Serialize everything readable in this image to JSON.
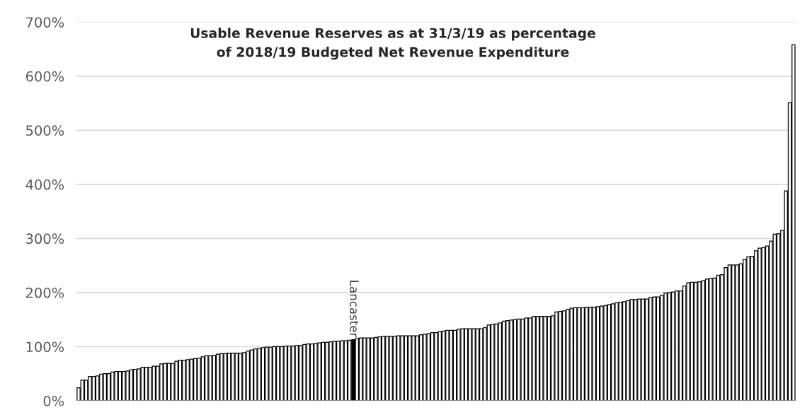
{
  "chart_data": {
    "type": "bar",
    "title": "Usable Revenue Reserves as at 31/3/19 as percentage\nof 2018/19 Budgeted Net Revenue Expenditure",
    "categories": [
      null,
      null,
      null,
      null,
      null,
      null,
      null,
      null,
      null,
      null,
      null,
      null,
      null,
      null,
      null,
      null,
      null,
      null,
      null,
      null,
      null,
      null,
      null,
      null,
      null,
      null,
      null,
      null,
      null,
      null,
      null,
      null,
      null,
      null,
      null,
      null,
      null,
      null,
      null,
      null,
      null,
      null,
      null,
      null,
      null,
      null,
      null,
      null,
      null,
      null,
      null,
      null,
      null,
      null,
      null,
      null,
      null,
      null,
      null,
      null,
      null,
      null,
      null,
      null,
      null,
      null,
      null,
      null,
      null,
      null,
      null,
      null,
      null,
      "Lancaster",
      null,
      null,
      null,
      null,
      null,
      null,
      null,
      null,
      null,
      null,
      null,
      null,
      null,
      null,
      null,
      null,
      null,
      null,
      null,
      null,
      null,
      null,
      null,
      null,
      null,
      null,
      null,
      null,
      null,
      null,
      null,
      null,
      null,
      null,
      null,
      null,
      null,
      null,
      null,
      null,
      null,
      null,
      null,
      null,
      null,
      null,
      null,
      null,
      null,
      null,
      null,
      null,
      null,
      null,
      null,
      null,
      null,
      null,
      null,
      null,
      null,
      null,
      null,
      null,
      null,
      null,
      null,
      null,
      null,
      null,
      null,
      null,
      null,
      null,
      null,
      null,
      null,
      null,
      null,
      null,
      null,
      null,
      null,
      null,
      null,
      null,
      null,
      null,
      null,
      null,
      null,
      null,
      null,
      null,
      null,
      null,
      null,
      null,
      null,
      null,
      null,
      null,
      null,
      null,
      null,
      null,
      null,
      null,
      null,
      null,
      null,
      null,
      null,
      null,
      null,
      null,
      null
    ],
    "values": [
      24,
      38,
      38,
      45,
      45,
      46,
      49,
      50,
      50,
      53,
      54,
      54,
      54,
      55,
      57,
      58,
      59,
      62,
      62,
      62,
      64,
      64,
      68,
      69,
      69,
      69,
      73,
      75,
      75,
      76,
      77,
      78,
      79,
      81,
      83,
      83,
      84,
      86,
      87,
      87,
      88,
      88,
      88,
      88,
      89,
      92,
      94,
      96,
      97,
      98,
      99,
      99,
      100,
      100,
      100,
      101,
      101,
      101,
      102,
      102,
      104,
      105,
      105,
      106,
      107,
      108,
      108,
      109,
      110,
      110,
      111,
      111,
      112,
      113,
      115,
      116,
      116,
      116,
      116,
      117,
      118,
      119,
      119,
      119,
      119,
      120,
      120,
      120,
      120,
      120,
      120,
      122,
      123,
      124,
      126,
      126,
      128,
      129,
      130,
      130,
      130,
      132,
      133,
      133,
      133,
      133,
      133,
      133,
      135,
      140,
      141,
      142,
      144,
      147,
      148,
      149,
      150,
      151,
      151,
      153,
      153,
      156,
      156,
      156,
      156,
      156,
      157,
      164,
      165,
      166,
      169,
      171,
      172,
      172,
      172,
      173,
      173,
      173,
      174,
      175,
      176,
      178,
      179,
      181,
      182,
      183,
      185,
      187,
      187,
      188,
      188,
      188,
      191,
      192,
      192,
      195,
      199,
      200,
      201,
      203,
      203,
      212,
      218,
      219,
      219,
      220,
      222,
      225,
      226,
      227,
      232,
      233,
      246,
      251,
      251,
      251,
      253,
      261,
      266,
      267,
      277,
      282,
      283,
      286,
      295,
      308,
      309,
      315,
      388,
      551,
      658
    ],
    "colors": [
      "#ffffff",
      "#ffffff",
      "#ffffff",
      "#ffffff",
      "#ffffff",
      "#ffffff",
      "#ffffff",
      "#ffffff",
      "#ffffff",
      "#ffffff",
      "#ffffff",
      "#ffffff",
      "#ffffff",
      "#ffffff",
      "#ffffff",
      "#ffffff",
      "#ffffff",
      "#ffffff",
      "#ffffff",
      "#ffffff",
      "#ffffff",
      "#ffffff",
      "#ffffff",
      "#ffffff",
      "#ffffff",
      "#ffffff",
      "#ffffff",
      "#ffffff",
      "#ffffff",
      "#ffffff",
      "#ffffff",
      "#ffffff",
      "#ffffff",
      "#ffffff",
      "#ffffff",
      "#ffffff",
      "#ffffff",
      "#ffffff",
      "#ffffff",
      "#ffffff",
      "#ffffff",
      "#ffffff",
      "#ffffff",
      "#ffffff",
      "#ffffff",
      "#ffffff",
      "#ffffff",
      "#ffffff",
      "#ffffff",
      "#ffffff",
      "#ffffff",
      "#ffffff",
      "#ffffff",
      "#ffffff",
      "#ffffff",
      "#ffffff",
      "#ffffff",
      "#ffffff",
      "#ffffff",
      "#ffffff",
      "#ffffff",
      "#ffffff",
      "#ffffff",
      "#ffffff",
      "#ffffff",
      "#ffffff",
      "#ffffff",
      "#ffffff",
      "#ffffff",
      "#ffffff",
      "#ffffff",
      "#ffffff",
      "#ffffff",
      "#000000",
      "#ffffff",
      "#ffffff",
      "#ffffff",
      "#ffffff",
      "#ffffff",
      "#ffffff",
      "#ffffff",
      "#ffffff",
      "#ffffff",
      "#ffffff",
      "#ffffff",
      "#ffffff",
      "#ffffff",
      "#ffffff",
      "#ffffff",
      "#ffffff",
      "#ffffff",
      "#ffffff",
      "#ffffff",
      "#ffffff",
      "#ffffff",
      "#ffffff",
      "#ffffff",
      "#ffffff",
      "#ffffff",
      "#ffffff",
      "#ffffff",
      "#ffffff",
      "#ffffff",
      "#ffffff",
      "#ffffff",
      "#ffffff",
      "#ffffff",
      "#ffffff",
      "#ffffff",
      "#ffffff",
      "#ffffff",
      "#ffffff",
      "#ffffff",
      "#ffffff",
      "#ffffff",
      "#ffffff",
      "#ffffff",
      "#ffffff",
      "#ffffff",
      "#ffffff",
      "#ffffff",
      "#ffffff",
      "#ffffff",
      "#ffffff",
      "#ffffff",
      "#ffffff",
      "#ffffff",
      "#ffffff",
      "#ffffff",
      "#ffffff",
      "#ffffff",
      "#ffffff",
      "#ffffff",
      "#ffffff",
      "#ffffff",
      "#ffffff",
      "#ffffff",
      "#ffffff",
      "#ffffff",
      "#ffffff",
      "#ffffff",
      "#ffffff",
      "#ffffff",
      "#ffffff",
      "#ffffff",
      "#ffffff",
      "#ffffff",
      "#ffffff",
      "#ffffff",
      "#ffffff",
      "#ffffff",
      "#ffffff",
      "#ffffff",
      "#ffffff",
      "#ffffff",
      "#ffffff",
      "#ffffff",
      "#ffffff",
      "#ffffff",
      "#ffffff",
      "#ffffff",
      "#ffffff",
      "#ffffff",
      "#ffffff",
      "#ffffff",
      "#ffffff",
      "#ffffff",
      "#ffffff",
      "#ffffff",
      "#ffffff",
      "#ffffff",
      "#ffffff",
      "#ffffff",
      "#ffffff",
      "#ffffff",
      "#ffffff",
      "#ffffff",
      "#ffffff",
      "#ffffff",
      "#ffffff",
      "#ffffff",
      "#ffffff",
      "#ffffff",
      "#ffffff",
      "#ffffff",
      "#ffffff",
      "#ffffff",
      "#ffffff",
      "#ffffff",
      "#ffffff",
      "#ffffff"
    ],
    "ylim": [
      0,
      700
    ],
    "yticks": [
      {
        "value": 0,
        "label": "0%"
      },
      {
        "value": 100,
        "label": "100%"
      },
      {
        "value": 200,
        "label": "200%"
      },
      {
        "value": 300,
        "label": "300%"
      },
      {
        "value": 400,
        "label": "400%"
      },
      {
        "value": 500,
        "label": "500%"
      },
      {
        "value": 600,
        "label": "600%"
      },
      {
        "value": 700,
        "label": "700%"
      }
    ],
    "grid": "y",
    "legend": false
  }
}
